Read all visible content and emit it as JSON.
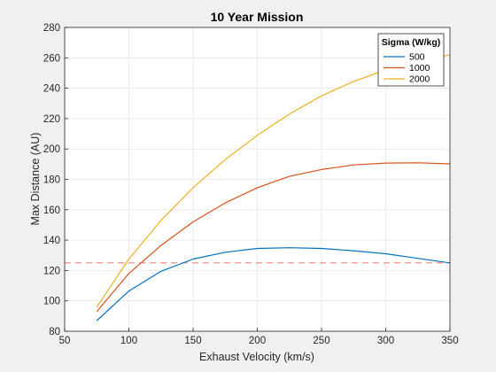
{
  "chart_data": {
    "type": "line",
    "title": "10 Year Mission",
    "xlabel": "Exhaust Velocity (km/s)",
    "ylabel": "Max Distance (AU)",
    "xlim": [
      50,
      350
    ],
    "ylim": [
      80,
      280
    ],
    "xticks": [
      50,
      100,
      150,
      200,
      250,
      300,
      350
    ],
    "yticks": [
      80,
      100,
      120,
      140,
      160,
      180,
      200,
      220,
      240,
      260,
      280
    ],
    "grid": true,
    "legend": {
      "title": "Sigma (W/kg)",
      "placement": "top-right"
    },
    "x": [
      75,
      100,
      125,
      150,
      175,
      200,
      225,
      250,
      275,
      300,
      325,
      350
    ],
    "series": [
      {
        "name": "500",
        "color": "#0072BD",
        "values": [
          87,
          106.5,
          119.5,
          127.5,
          132,
          134.5,
          135,
          134.5,
          133,
          131,
          128,
          125
        ]
      },
      {
        "name": "1000",
        "color": "#D95319",
        "values": [
          93,
          118,
          136.5,
          152,
          164.5,
          174.5,
          182,
          186.5,
          189.5,
          190.7,
          190.9,
          190.2
        ]
      },
      {
        "name": "2000",
        "color": "#EDB120",
        "values": [
          96,
          127.5,
          153,
          174.5,
          193,
          209,
          223,
          235,
          244.5,
          252,
          258,
          262
        ]
      }
    ],
    "reference_line": {
      "y": 125,
      "color": "#f08080",
      "style": "dashed"
    }
  }
}
